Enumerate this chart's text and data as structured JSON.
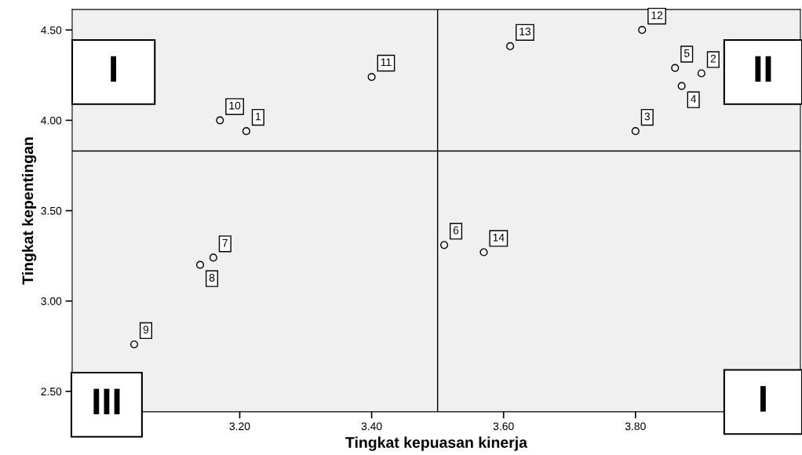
{
  "chart_data": {
    "type": "scatter",
    "xlabel": "Tingkat kepuasan kinerja",
    "ylabel": "Tingkat kepentingan",
    "x": [
      3.21,
      3.9,
      3.8,
      3.87,
      3.86,
      3.51,
      3.16,
      3.14,
      3.04,
      3.17,
      3.4,
      3.81,
      3.61,
      3.57
    ],
    "series": [
      {
        "color": "#000000",
        "values": [
          3.94,
          4.26,
          3.94,
          4.19,
          4.29,
          3.31,
          3.24,
          3.2,
          2.76,
          4.0,
          4.24,
          4.5,
          4.41,
          3.27
        ]
      }
    ],
    "marker": "circle",
    "grid": false,
    "xlim": [
      2.946,
      4.05
    ],
    "xticks": [
      {
        "value": 3.2,
        "label": "3.20"
      },
      {
        "value": 3.4,
        "label": "3.40"
      },
      {
        "value": 3.6,
        "label": "3.60"
      },
      {
        "value": 3.8,
        "label": "3.80"
      }
    ],
    "ylim": [
      2.387,
      4.613
    ],
    "yticks": [
      {
        "value": 2.5,
        "label": "2.50"
      },
      {
        "value": 3.0,
        "label": "3.00"
      },
      {
        "value": 3.5,
        "label": "3.50"
      },
      {
        "value": 4.0,
        "label": "4.00"
      },
      {
        "value": 4.5,
        "label": "4.50"
      }
    ],
    "ref_lines": [
      {
        "axis": "x",
        "value": 3.5,
        "color": "#000000"
      },
      {
        "axis": "y",
        "value": 3.83,
        "color": "#000000"
      }
    ],
    "annotations": [
      {
        "text": "1",
        "x": 3.21,
        "y": 3.94
      },
      {
        "text": "2",
        "x": 3.9,
        "y": 4.26
      },
      {
        "text": "3",
        "x": 3.8,
        "y": 3.94
      },
      {
        "text": "4",
        "x": 3.87,
        "y": 4.19
      },
      {
        "text": "5",
        "x": 3.86,
        "y": 4.29
      },
      {
        "text": "6",
        "x": 3.51,
        "y": 3.31
      },
      {
        "text": "7",
        "x": 3.16,
        "y": 3.24
      },
      {
        "text": "8",
        "x": 3.14,
        "y": 3.2
      },
      {
        "text": "9",
        "x": 3.04,
        "y": 2.76
      },
      {
        "text": "10",
        "x": 3.17,
        "y": 4.0
      },
      {
        "text": "11",
        "x": 3.4,
        "y": 4.24
      },
      {
        "text": "12",
        "x": 3.81,
        "y": 4.5
      },
      {
        "text": "13",
        "x": 3.61,
        "y": 4.41
      },
      {
        "text": "14",
        "x": 3.57,
        "y": 3.27
      },
      "I",
      "II",
      "III",
      "I"
    ]
  }
}
